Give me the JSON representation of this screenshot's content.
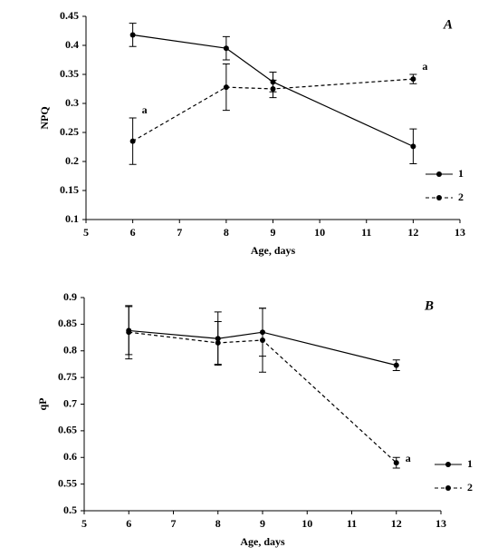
{
  "chart_data": [
    {
      "type": "line",
      "panel_label": "A",
      "ylabel": "NPQ",
      "xlabel": "Age, days",
      "x": [
        6,
        8,
        9,
        12
      ],
      "series": [
        {
          "name": "1",
          "color": "#000000",
          "dash": "solid",
          "values": [
            0.418,
            0.395,
            0.337,
            0.226
          ],
          "errors": [
            0.02,
            0.02,
            0.017,
            0.03
          ]
        },
        {
          "name": "2",
          "color": "#000000",
          "dash": "dashed",
          "values": [
            0.235,
            0.328,
            0.325,
            0.342
          ],
          "errors": [
            0.04,
            0.04,
            0.015,
            0.008
          ]
        }
      ],
      "annotations": [
        {
          "text": "a",
          "x": 6
        },
        {
          "text": "a",
          "x": 12
        }
      ],
      "xlim": [
        5,
        13
      ],
      "xticks": [
        5,
        6,
        7,
        8,
        9,
        10,
        11,
        12,
        13
      ],
      "ylim": [
        0.1,
        0.45
      ],
      "yticks": [
        0.1,
        0.15,
        0.2,
        0.25,
        0.3,
        0.35,
        0.4,
        0.45
      ],
      "grid": false,
      "legend": "lower right"
    },
    {
      "type": "line",
      "panel_label": "B",
      "ylabel": "qP",
      "xlabel": "Age, days",
      "x": [
        6,
        8,
        9,
        12
      ],
      "series": [
        {
          "name": "1",
          "color": "#000000",
          "dash": "solid",
          "values": [
            0.838,
            0.823,
            0.835,
            0.773
          ],
          "errors": [
            0.045,
            0.05,
            0.045,
            0.01
          ]
        },
        {
          "name": "2",
          "color": "#000000",
          "dash": "dashed",
          "values": [
            0.835,
            0.815,
            0.82,
            0.59
          ],
          "errors": [
            0.05,
            0.04,
            0.06,
            0.01
          ]
        }
      ],
      "annotations": [
        {
          "text": "a",
          "x": 12
        }
      ],
      "xlim": [
        5,
        13
      ],
      "xticks": [
        5,
        6,
        7,
        8,
        9,
        10,
        11,
        12,
        13
      ],
      "ylim": [
        0.5,
        0.9
      ],
      "yticks": [
        0.5,
        0.55,
        0.6,
        0.65,
        0.7,
        0.75,
        0.8,
        0.85,
        0.9
      ],
      "grid": false,
      "legend": "lower right"
    }
  ]
}
